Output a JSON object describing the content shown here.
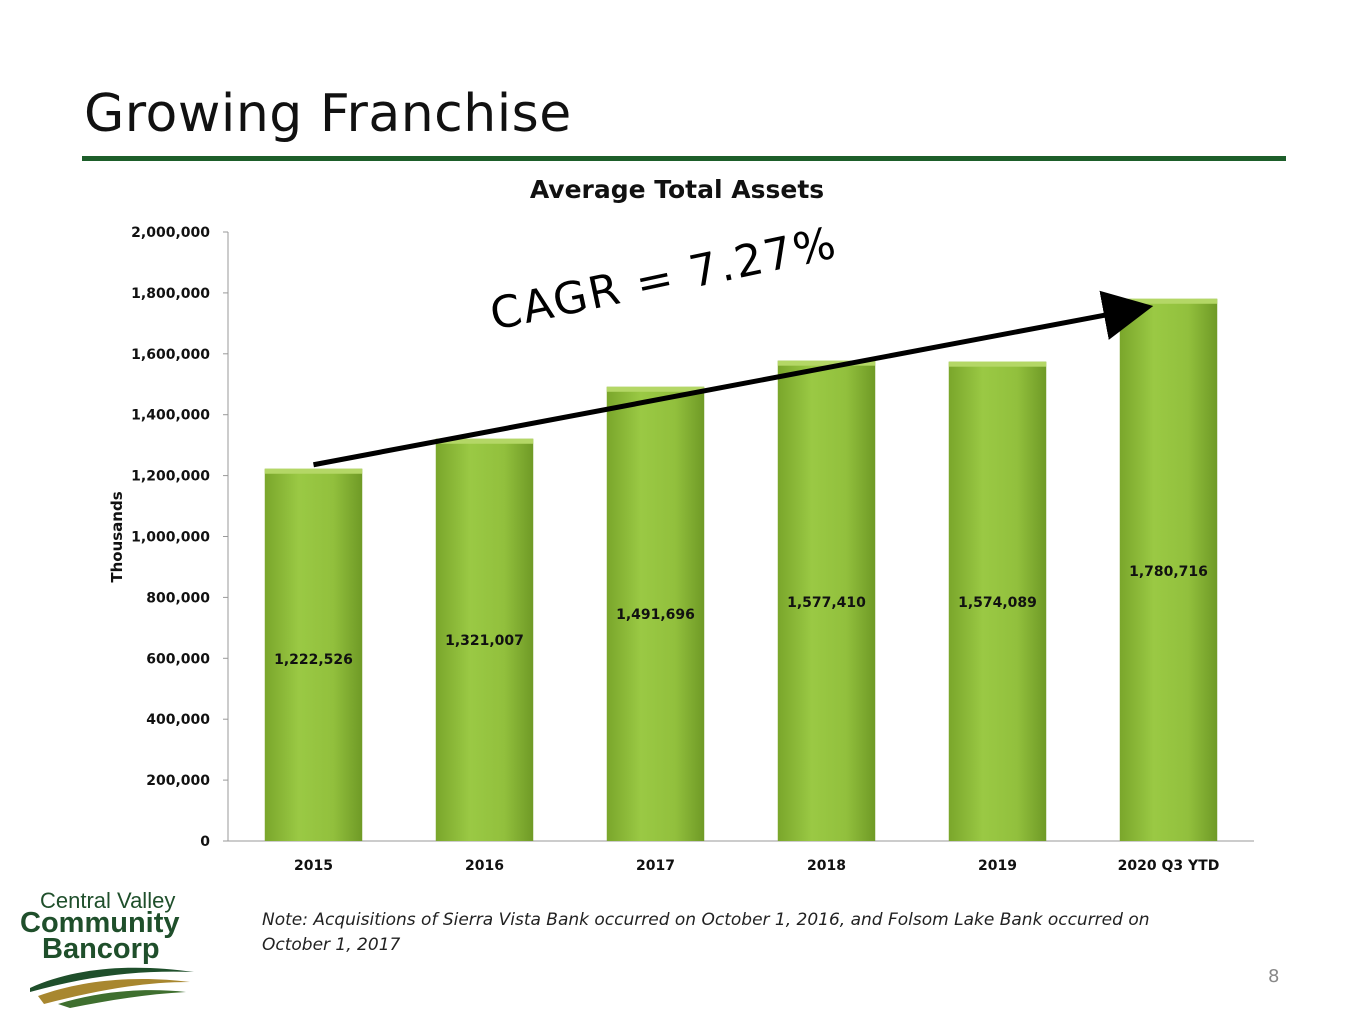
{
  "slide": {
    "title": "Growing Franchise",
    "note": "Note: Acquisitions of Sierra Vista Bank occurred on October 1, 2016, and Folsom Lake Bank occurred on October 1, 2017",
    "page_number": "8"
  },
  "logo": {
    "line1": "Central Valley",
    "line2": "Community",
    "line3": "Bancorp"
  },
  "colors": {
    "accent_green": "#1d5e2a",
    "bar_fill": "#8fbe3a",
    "bar_light": "#b4d766"
  },
  "chart_data": {
    "type": "bar",
    "title": "Average Total Assets",
    "ylabel": "Thousands",
    "xlabel": "",
    "categories": [
      "2015",
      "2016",
      "2017",
      "2018",
      "2019",
      "2020 Q3 YTD"
    ],
    "values": [
      1222526,
      1321007,
      1491696,
      1577410,
      1574089,
      1780716
    ],
    "value_labels": [
      "1,222,526",
      "1,321,007",
      "1,491,696",
      "1,577,410",
      "1,574,089",
      "1,780,716"
    ],
    "ylim": [
      0,
      2000000
    ],
    "yticks": [
      0,
      200000,
      400000,
      600000,
      800000,
      1000000,
      1200000,
      1400000,
      1600000,
      1800000,
      2000000
    ],
    "ytick_labels": [
      "0",
      "200,000",
      "400,000",
      "600,000",
      "800,000",
      "1,000,000",
      "1,200,000",
      "1,400,000",
      "1,600,000",
      "1,800,000",
      "2,000,000"
    ],
    "grid": false,
    "legend": "none",
    "annotation": {
      "text": "CAGR = 7.27%",
      "arrow_from_category": "2015",
      "arrow_to_category": "2020 Q3 YTD"
    }
  }
}
